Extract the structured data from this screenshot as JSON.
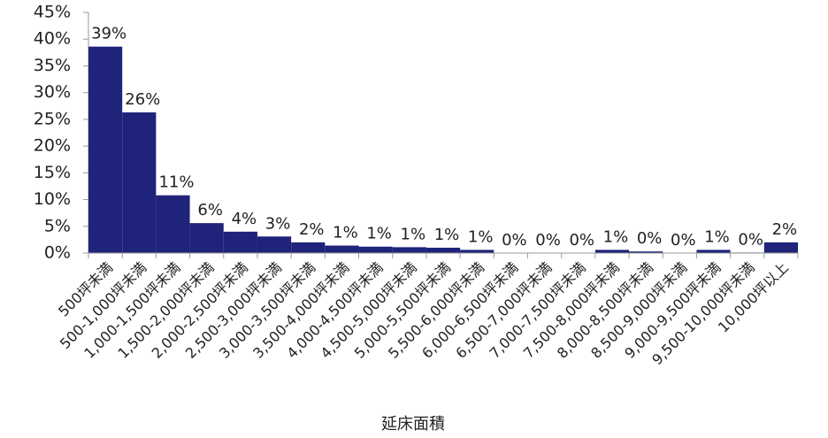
{
  "chart_data": {
    "type": "bar",
    "xlabel": "延床面積",
    "categories": [
      "500坪未満",
      "500-1,000坪未満",
      "1,000-1,500坪未満",
      "1,500-2,000坪未満",
      "2,000-2,500坪未満",
      "2,500-3,000坪未満",
      "3,000-3,500坪未満",
      "3,500-4,000坪未満",
      "4,000-4,500坪未満",
      "4,500-5,000坪未満",
      "5,000-5,500坪未満",
      "5,500-6,000坪未満",
      "6,000-6,500坪未満",
      "6,500-7,000坪未満",
      "7,000-7,500坪未満",
      "7,500-8,000坪未満",
      "8,000-8,500坪未満",
      "8,500-9,000坪未満",
      "9,000-9,500坪未満",
      "9,500-10,000坪未満",
      "10,000坪以上"
    ],
    "values": [
      38.6,
      26.3,
      10.8,
      5.6,
      4.0,
      3.1,
      2.0,
      1.4,
      1.2,
      1.1,
      1.0,
      0.6,
      0.0,
      0.0,
      0.0,
      0.6,
      0.3,
      0.0,
      0.6,
      0.1,
      2.0
    ],
    "value_labels": [
      "39%",
      "26%",
      "11%",
      "6%",
      "4%",
      "3%",
      "2%",
      "1%",
      "1%",
      "1%",
      "1%",
      "1%",
      "0%",
      "0%",
      "0%",
      "1%",
      "0%",
      "0%",
      "1%",
      "0%",
      "2%"
    ],
    "color": "#1f237a",
    "ylim": [
      0,
      45
    ],
    "yticks": [
      {
        "value": 0,
        "label": "0%"
      },
      {
        "value": 5,
        "label": "5%"
      },
      {
        "value": 10,
        "label": "10%"
      },
      {
        "value": 15,
        "label": "15%"
      },
      {
        "value": 20,
        "label": "20%"
      },
      {
        "value": 25,
        "label": "25%"
      },
      {
        "value": 30,
        "label": "30%"
      },
      {
        "value": 35,
        "label": "35%"
      },
      {
        "value": 40,
        "label": "40%"
      },
      {
        "value": 45,
        "label": "45%"
      }
    ]
  }
}
